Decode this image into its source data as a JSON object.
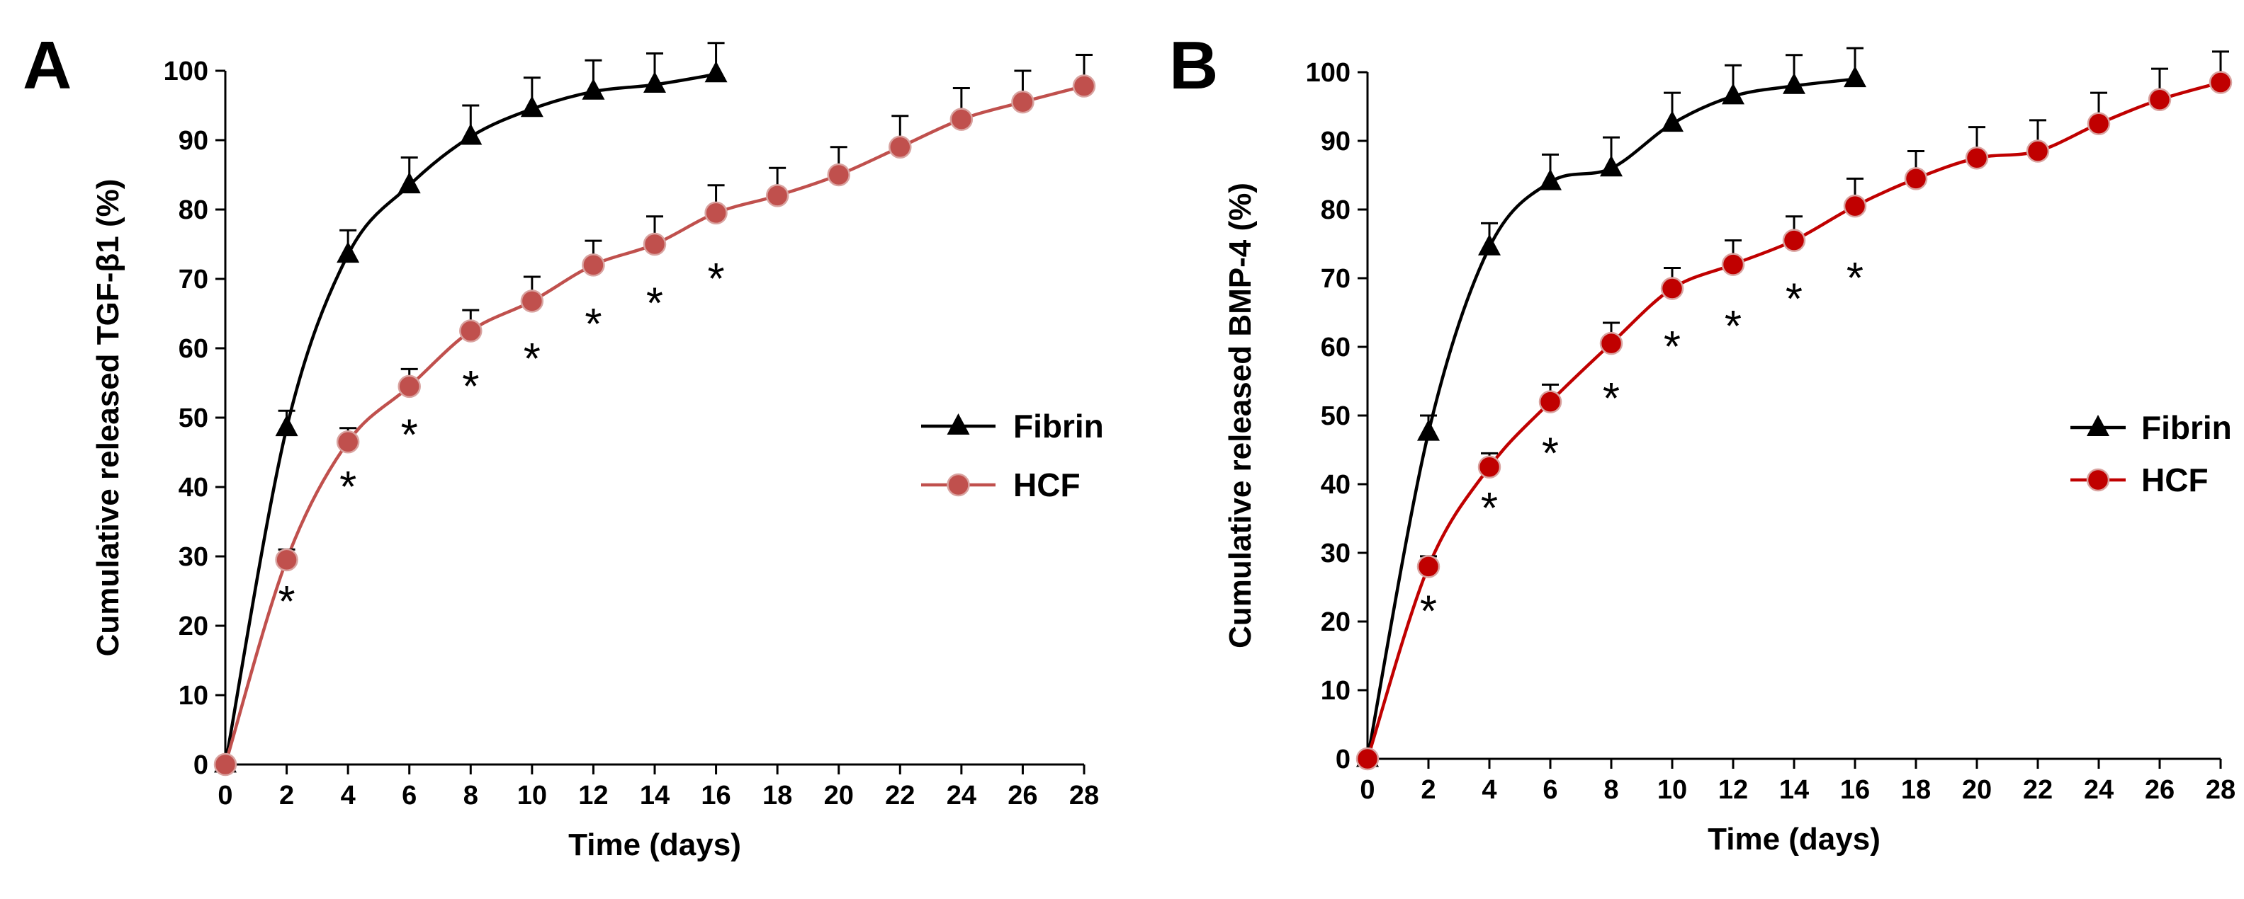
{
  "chart_data": [
    {
      "panel": "A",
      "type": "line",
      "title": "",
      "xlabel": "Time (days)",
      "ylabel": "Cumulative released TGF-β1 (%)",
      "xlim": [
        0,
        28
      ],
      "ylim": [
        0,
        100
      ],
      "xticks": [
        0,
        2,
        4,
        6,
        8,
        10,
        12,
        14,
        16,
        18,
        20,
        22,
        24,
        26,
        28
      ],
      "yticks": [
        0,
        10,
        20,
        30,
        40,
        50,
        60,
        70,
        80,
        90,
        100
      ],
      "grid": false,
      "legend_position": "right",
      "series": [
        {
          "name": "Fibrin",
          "marker": "triangle",
          "color": "#000000",
          "x": [
            0,
            2,
            4,
            6,
            8,
            10,
            12,
            14,
            16
          ],
          "values": [
            0,
            48.5,
            73.5,
            83.5,
            90.5,
            94.5,
            97,
            98,
            99.5
          ],
          "error": [
            0,
            2.5,
            3.5,
            4,
            4.5,
            4.5,
            4.5,
            4.5,
            4.5
          ]
        },
        {
          "name": "HCF",
          "marker": "circle",
          "color": "#c0504d",
          "x": [
            0,
            2,
            4,
            6,
            8,
            10,
            12,
            14,
            16,
            18,
            20,
            22,
            24,
            26,
            28
          ],
          "values": [
            0,
            29.5,
            46.5,
            54.5,
            62.5,
            66.8,
            72,
            75,
            79.5,
            82,
            85,
            89,
            93,
            95.5,
            97.8
          ],
          "error": [
            0,
            1.5,
            2,
            2.5,
            3,
            3.5,
            3.5,
            4,
            4,
            4,
            4,
            4.5,
            4.5,
            4.5,
            4.5
          ]
        }
      ],
      "annotations": [
        {
          "x": 2,
          "y": 24,
          "text": "*"
        },
        {
          "x": 4,
          "y": 40.5,
          "text": "*"
        },
        {
          "x": 6,
          "y": 48,
          "text": "*"
        },
        {
          "x": 8,
          "y": 55,
          "text": "*"
        },
        {
          "x": 10,
          "y": 59,
          "text": "*"
        },
        {
          "x": 12,
          "y": 64,
          "text": "*"
        },
        {
          "x": 14,
          "y": 67,
          "text": "*"
        },
        {
          "x": 16,
          "y": 70.5,
          "text": "*"
        }
      ]
    },
    {
      "panel": "B",
      "type": "line",
      "title": "",
      "xlabel": "Time (days)",
      "ylabel": "Cumulative released BMP-4 (%)",
      "xlim": [
        0,
        28
      ],
      "ylim": [
        0,
        100
      ],
      "xticks": [
        0,
        2,
        4,
        6,
        8,
        10,
        12,
        14,
        16,
        18,
        20,
        22,
        24,
        26,
        28
      ],
      "yticks": [
        0,
        10,
        20,
        30,
        40,
        50,
        60,
        70,
        80,
        90,
        100
      ],
      "grid": false,
      "legend_position": "right",
      "series": [
        {
          "name": "Fibrin",
          "marker": "triangle",
          "color": "#000000",
          "x": [
            0,
            2,
            4,
            6,
            8,
            10,
            12,
            14,
            16
          ],
          "values": [
            0,
            47.5,
            74.5,
            84,
            86,
            92.5,
            96.5,
            98,
            99
          ],
          "error": [
            0,
            2.5,
            3.5,
            4,
            4.5,
            4.5,
            4.5,
            4.5,
            4.5
          ]
        },
        {
          "name": "HCF",
          "marker": "circle",
          "color": "#c00000",
          "x": [
            0,
            2,
            4,
            6,
            8,
            10,
            12,
            14,
            16,
            18,
            20,
            22,
            24,
            26,
            28
          ],
          "values": [
            0,
            28,
            42.5,
            52,
            60.5,
            68.5,
            72,
            75.5,
            80.5,
            84.5,
            87.5,
            88.5,
            92.5,
            96,
            98.5
          ],
          "error": [
            0,
            1.5,
            2,
            2.5,
            3,
            3,
            3.5,
            3.5,
            4,
            4,
            4.5,
            4.5,
            4.5,
            4.5,
            4.5
          ]
        }
      ],
      "annotations": [
        {
          "x": 2,
          "y": 22,
          "text": "*"
        },
        {
          "x": 4,
          "y": 37,
          "text": "*"
        },
        {
          "x": 6,
          "y": 45,
          "text": "*"
        },
        {
          "x": 8,
          "y": 53,
          "text": "*"
        },
        {
          "x": 10,
          "y": 60.5,
          "text": "*"
        },
        {
          "x": 12,
          "y": 63.5,
          "text": "*"
        },
        {
          "x": 14,
          "y": 67.5,
          "text": "*"
        },
        {
          "x": 16,
          "y": 70.5,
          "text": "*"
        }
      ]
    }
  ]
}
